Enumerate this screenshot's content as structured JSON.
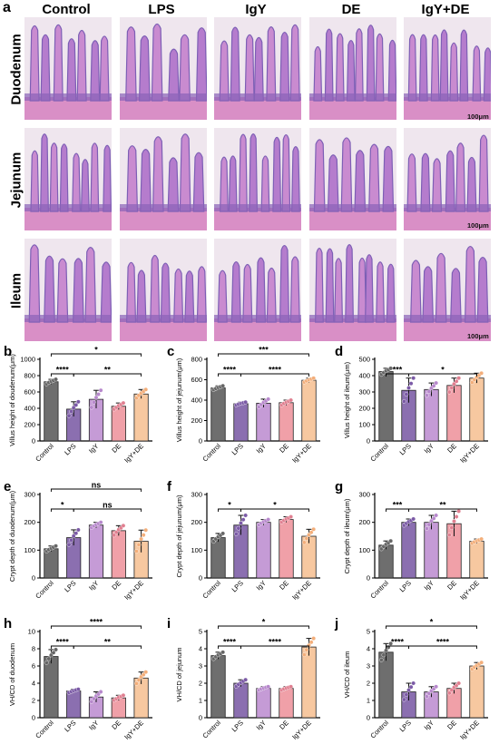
{
  "panel_a": {
    "letter": "a",
    "columns": [
      "Control",
      "LPS",
      "IgY",
      "DE",
      "IgY+DE"
    ],
    "rows": [
      "Duodenum",
      "Jejunum",
      "Ileum"
    ],
    "scale_label": "100μm"
  },
  "colors": {
    "groups": [
      "#6e6e6e",
      "#8b6fb0",
      "#c59bd6",
      "#f0a0a8",
      "#f7c8a0"
    ],
    "points": [
      "#666666",
      "#7b5aa6",
      "#b788cc",
      "#e07f90",
      "#f3ae7a"
    ],
    "tissue_pink": "#d48bc8",
    "tissue_purple": "#7d5fb5"
  },
  "chart_data": [
    {
      "panel": "b",
      "type": "bar",
      "categories": [
        "Control",
        "LPS",
        "IgY",
        "DE",
        "IgY+DE"
      ],
      "values": [
        725,
        390,
        510,
        425,
        575
      ],
      "errors": [
        30,
        90,
        110,
        40,
        55
      ],
      "ylabel": "Villus height of doudenum(μm)",
      "ylim": [
        0,
        1000
      ],
      "yticks": [
        0,
        200,
        400,
        600,
        800,
        1000
      ],
      "sig": [
        {
          "from": 0,
          "to": 4,
          "label": "*",
          "level": 3
        },
        {
          "from": 0,
          "to": 1,
          "label": "****",
          "level": 1
        },
        {
          "from": 1,
          "to": 4,
          "label": "**",
          "level": 1
        }
      ]
    },
    {
      "panel": "c",
      "type": "bar",
      "categories": [
        "Control",
        "LPS",
        "IgY",
        "DE",
        "IgY+DE"
      ],
      "values": [
        520,
        365,
        370,
        375,
        595
      ],
      "errors": [
        20,
        15,
        40,
        25,
        20
      ],
      "ylabel": "Villus height of jejunum(μm)",
      "ylim": [
        0,
        800
      ],
      "yticks": [
        0,
        200,
        400,
        600,
        800
      ],
      "sig": [
        {
          "from": 0,
          "to": 4,
          "label": "***",
          "level": 3
        },
        {
          "from": 0,
          "to": 1,
          "label": "****",
          "level": 1
        },
        {
          "from": 1,
          "to": 4,
          "label": "****",
          "level": 1
        }
      ]
    },
    {
      "panel": "d",
      "type": "bar",
      "categories": [
        "Control",
        "LPS",
        "IgY",
        "DE",
        "IgY+DE"
      ],
      "values": [
        425,
        310,
        315,
        340,
        385
      ],
      "errors": [
        20,
        75,
        40,
        45,
        30
      ],
      "ylabel": "Villus height of ileum(μm)",
      "ylim": [
        0,
        500
      ],
      "yticks": [
        0,
        100,
        200,
        300,
        400,
        500
      ],
      "sig": [
        {
          "from": 0,
          "to": 1,
          "label": "***",
          "level": 1
        },
        {
          "from": 1,
          "to": 4,
          "label": "*",
          "level": 1
        }
      ]
    },
    {
      "panel": "e",
      "type": "bar",
      "categories": [
        "Control",
        "LPS",
        "IgY",
        "DE",
        "IgY+DE"
      ],
      "values": [
        105,
        145,
        190,
        170,
        132
      ],
      "errors": [
        10,
        28,
        10,
        18,
        40
      ],
      "ylabel": "Crypt depth of duodenum(μm)",
      "ylim": [
        0,
        300
      ],
      "yticks": [
        0,
        100,
        200,
        300
      ],
      "sig": [
        {
          "from": 0,
          "to": 4,
          "label": "ns",
          "level": 3
        },
        {
          "from": 0,
          "to": 1,
          "label": "*",
          "level": 1
        },
        {
          "from": 1,
          "to": 4,
          "label": "ns",
          "level": 1
        }
      ]
    },
    {
      "panel": "f",
      "type": "bar",
      "categories": [
        "Control",
        "LPS",
        "IgY",
        "DE",
        "IgY+DE"
      ],
      "values": [
        145,
        190,
        200,
        210,
        150
      ],
      "errors": [
        15,
        35,
        10,
        10,
        25
      ],
      "ylabel": "Crypt depth of jejunum(μm)",
      "ylim": [
        0,
        300
      ],
      "yticks": [
        0,
        100,
        200,
        300
      ],
      "sig": [
        {
          "from": 0,
          "to": 1,
          "label": "*",
          "level": 1
        },
        {
          "from": 1,
          "to": 4,
          "label": "*",
          "level": 1
        }
      ]
    },
    {
      "panel": "g",
      "type": "bar",
      "categories": [
        "Control",
        "LPS",
        "IgY",
        "DE",
        "IgY+DE"
      ],
      "values": [
        118,
        200,
        200,
        195,
        132
      ],
      "errors": [
        15,
        12,
        25,
        45,
        8
      ],
      "ylabel": "Crypt depth of ileum(μm)",
      "ylim": [
        0,
        300
      ],
      "yticks": [
        0,
        100,
        200,
        300
      ],
      "sig": [
        {
          "from": 0,
          "to": 1,
          "label": "***",
          "level": 1
        },
        {
          "from": 1,
          "to": 4,
          "label": "**",
          "level": 1
        }
      ]
    },
    {
      "panel": "h",
      "type": "bar",
      "categories": [
        "Control",
        "LPS",
        "IgY",
        "DE",
        "IgY+DE"
      ],
      "values": [
        7.1,
        3.1,
        2.4,
        2.3,
        4.6
      ],
      "errors": [
        0.8,
        0.2,
        0.6,
        0.3,
        0.7
      ],
      "ylabel": "VH/CD of duodenum",
      "ylim": [
        0,
        10
      ],
      "yticks": [
        0,
        2,
        4,
        6,
        8,
        10
      ],
      "sig": [
        {
          "from": 0,
          "to": 4,
          "label": "****",
          "level": 3
        },
        {
          "from": 0,
          "to": 1,
          "label": "****",
          "level": 1
        },
        {
          "from": 1,
          "to": 4,
          "label": "**",
          "level": 1
        }
      ]
    },
    {
      "panel": "i",
      "type": "bar",
      "categories": [
        "Control",
        "LPS",
        "IgY",
        "DE",
        "IgY+DE"
      ],
      "values": [
        3.6,
        2.0,
        1.7,
        1.7,
        4.1
      ],
      "errors": [
        0.2,
        0.2,
        0.1,
        0.1,
        0.5
      ],
      "ylabel": "VH/CD of jejunum",
      "ylim": [
        0,
        5
      ],
      "yticks": [
        0,
        1,
        2,
        3,
        4,
        5
      ],
      "sig": [
        {
          "from": 0,
          "to": 4,
          "label": "*",
          "level": 3
        },
        {
          "from": 0,
          "to": 1,
          "label": "****",
          "level": 1
        },
        {
          "from": 1,
          "to": 4,
          "label": "****",
          "level": 1
        }
      ]
    },
    {
      "panel": "j",
      "type": "bar",
      "categories": [
        "Control",
        "LPS",
        "IgY",
        "DE",
        "IgY+DE"
      ],
      "values": [
        3.8,
        1.5,
        1.5,
        1.7,
        3.0
      ],
      "errors": [
        0.5,
        0.5,
        0.3,
        0.3,
        0.2
      ],
      "ylabel": "VH/CD of ileum",
      "ylim": [
        0,
        5
      ],
      "yticks": [
        0,
        1,
        2,
        3,
        4,
        5
      ],
      "sig": [
        {
          "from": 0,
          "to": 4,
          "label": "*",
          "level": 3
        },
        {
          "from": 0,
          "to": 1,
          "label": "****",
          "level": 1
        },
        {
          "from": 1,
          "to": 4,
          "label": "****",
          "level": 1
        }
      ]
    }
  ]
}
